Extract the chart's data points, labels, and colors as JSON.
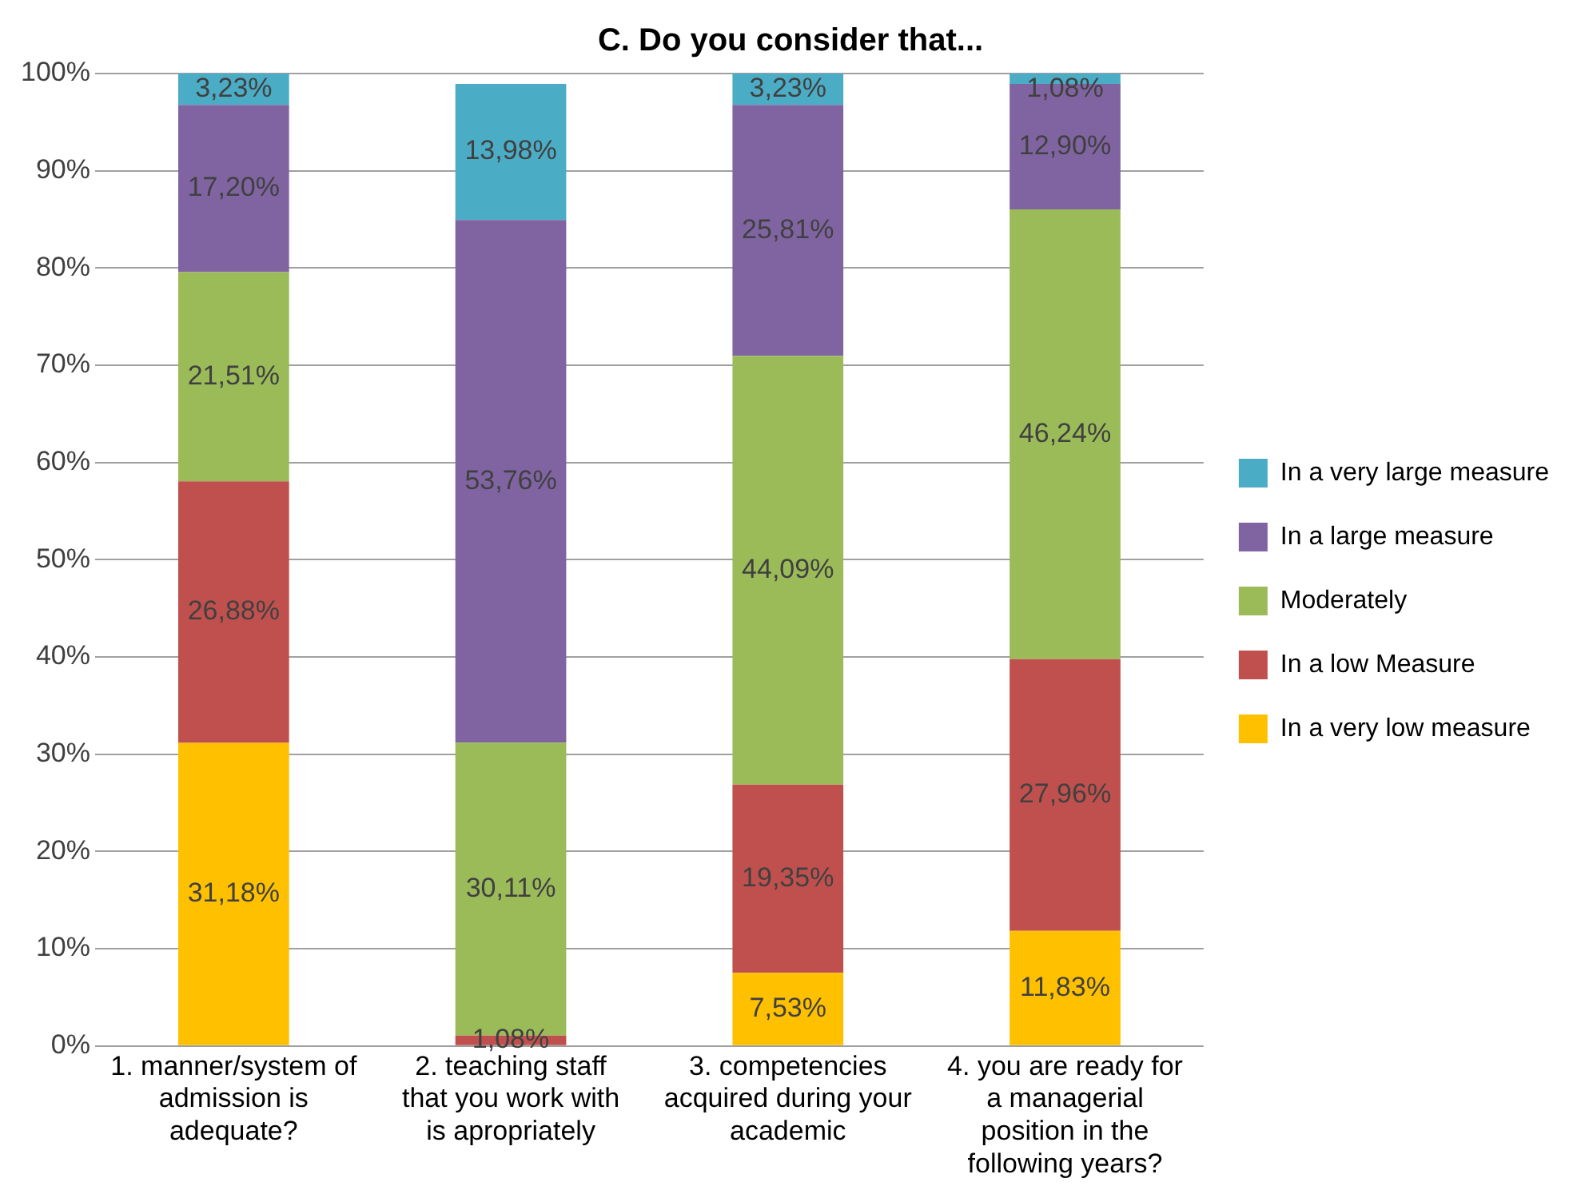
{
  "chart_data": {
    "type": "bar",
    "stacked": true,
    "title": "C. Do you consider that...",
    "categories": [
      "1. manner/system of admission is adequate?",
      "2. teaching staff that you work with is apropriately",
      "3. competencies acquired during your academic",
      "4. you are ready for a managerial position in the following years?"
    ],
    "series": [
      {
        "name": "In a very low measure",
        "color": "#ffc000",
        "values": [
          31.18,
          null,
          7.53,
          11.83
        ],
        "value_labels": [
          "31,18%",
          null,
          "7,53%",
          "11,83%"
        ]
      },
      {
        "name": "In a low Measure",
        "color": "#c0504d",
        "values": [
          26.88,
          1.08,
          19.35,
          27.96
        ],
        "value_labels": [
          "26,88%",
          "1,08%",
          "19,35%",
          "27,96%"
        ]
      },
      {
        "name": "Moderately",
        "color": "#9bbb59",
        "values": [
          21.51,
          30.11,
          44.09,
          46.24
        ],
        "value_labels": [
          "21,51%",
          "30,11%",
          "44,09%",
          "46,24%"
        ]
      },
      {
        "name": "In a large measure",
        "color": "#8064a2",
        "values": [
          17.2,
          53.76,
          25.81,
          12.9
        ],
        "value_labels": [
          "17,20%",
          "53,76%",
          "25,81%",
          "12,90%"
        ]
      },
      {
        "name": "In a very large measure",
        "color": "#4bacc6",
        "values": [
          3.23,
          13.98,
          3.23,
          1.08
        ],
        "value_labels": [
          "3,23%",
          "13,98%",
          "3,23%",
          "1,08%"
        ]
      }
    ],
    "ylim": [
      0,
      100
    ],
    "yticks": [
      {
        "value": 0,
        "label": "0%"
      },
      {
        "value": 10,
        "label": "10%"
      },
      {
        "value": 20,
        "label": "20%"
      },
      {
        "value": 30,
        "label": "30%"
      },
      {
        "value": 40,
        "label": "40%"
      },
      {
        "value": 50,
        "label": "50%"
      },
      {
        "value": 60,
        "label": "60%"
      },
      {
        "value": 70,
        "label": "70%"
      },
      {
        "value": 80,
        "label": "80%"
      },
      {
        "value": 90,
        "label": "90%"
      },
      {
        "value": 100,
        "label": "100%"
      }
    ],
    "grid": "y",
    "legend": "right"
  }
}
